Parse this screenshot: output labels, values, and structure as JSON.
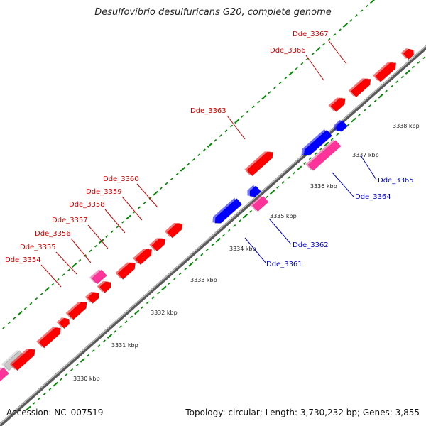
{
  "title": "Desulfovibrio desulfuricans G20, complete genome",
  "footer": {
    "accession": "Accession: NC_007519",
    "summary": "Topology: circular; Length: 3,730,232 bp; Genes: 3,855"
  },
  "colors": {
    "forward_gene": "#ff0000",
    "reverse_gene": "#0000ff",
    "rna_gene": "#ff3399",
    "pseudo_gene": "#c8c8c8",
    "backbone": "#888888",
    "tick": "#008800",
    "forward_label": "#cc0000",
    "reverse_label": "#0000cc"
  },
  "scale_labels": [
    "3330 kbp",
    "3331 kbp",
    "3332 kbp",
    "3333 kbp",
    "3334 kbp",
    "3335 kbp",
    "3336 kbp",
    "3337 kbp",
    "3338 kbp"
  ],
  "gene_labels": {
    "forward": [
      "Dde_3354",
      "Dde_3355",
      "Dde_3356",
      "Dde_3357",
      "Dde_3358",
      "Dde_3359",
      "Dde_3360",
      "Dde_3363",
      "Dde_3366",
      "Dde_3367"
    ],
    "reverse": [
      "Dde_3361",
      "Dde_3362",
      "Dde_3364",
      "Dde_3365"
    ]
  }
}
